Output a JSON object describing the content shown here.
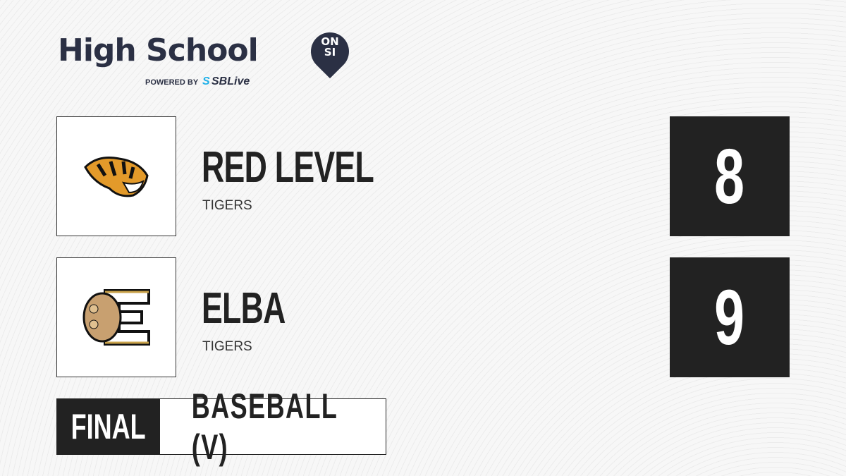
{
  "brand": {
    "title": "High School",
    "badge_line1": "ON",
    "badge_line2": "SI",
    "powered_by": "POWERED BY",
    "partner_prefix": "S",
    "partner": "SBLive"
  },
  "teams": [
    {
      "name": "RED LEVEL",
      "mascot": "TIGERS",
      "score": "8",
      "logo_icon": "tiger-head-icon"
    },
    {
      "name": "ELBA",
      "mascot": "TIGERS",
      "score": "9",
      "logo_icon": "tiger-paw-e-icon"
    }
  ],
  "status": "FINAL",
  "sport": "BASEBALL (V)",
  "colors": {
    "dark": "#222222",
    "brand": "#2b3044",
    "accent": "#1fb0e8"
  }
}
